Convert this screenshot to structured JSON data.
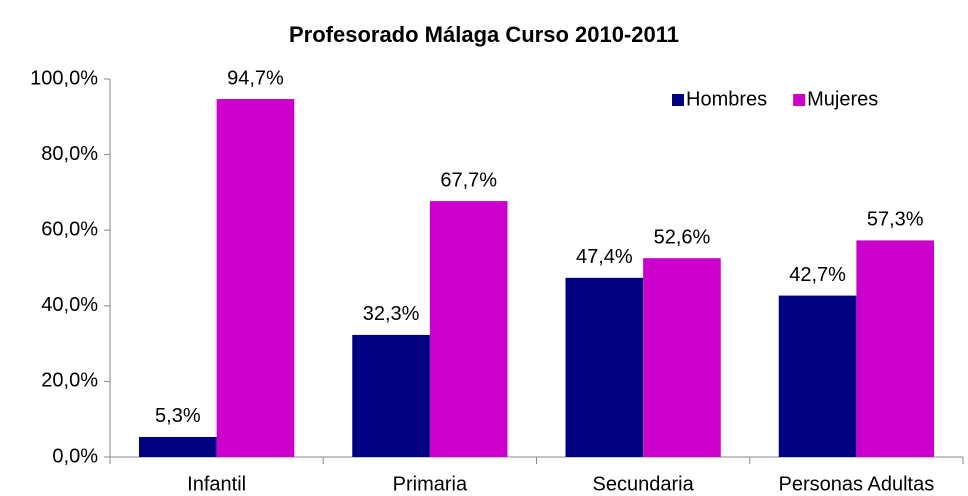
{
  "chart_data": {
    "type": "bar",
    "title": "Profesorado Málaga Curso 2010-2011",
    "categories": [
      "Infantil",
      "Primaria",
      "Secundaria",
      "Personas Adultas"
    ],
    "series": [
      {
        "name": "Hombres",
        "color": "#000080",
        "values": [
          5.3,
          32.3,
          47.4,
          42.7
        ],
        "value_labels": [
          "5,3%",
          "32,3%",
          "47,4%",
          "42,7%"
        ]
      },
      {
        "name": "Mujeres",
        "color": "#cc00cc",
        "values": [
          94.7,
          67.7,
          52.6,
          57.3
        ],
        "value_labels": [
          "94,7%",
          "67,7%",
          "52,6%",
          "57,3%"
        ]
      }
    ],
    "ylim": [
      0,
      100
    ],
    "yticks": [
      {
        "value": 0,
        "label": "0,0%"
      },
      {
        "value": 20,
        "label": "20,0%"
      },
      {
        "value": 40,
        "label": "40,0%"
      },
      {
        "value": 60,
        "label": "60,0%"
      },
      {
        "value": 80,
        "label": "80,0%"
      },
      {
        "value": 100,
        "label": "100,0%"
      }
    ],
    "grid": false,
    "legend": "upper right"
  }
}
